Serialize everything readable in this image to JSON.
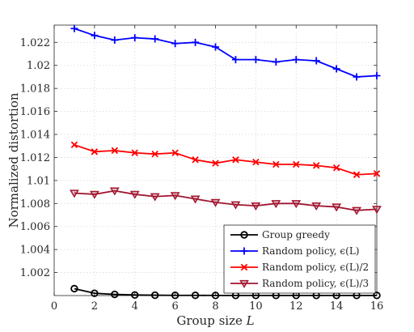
{
  "chart_data": {
    "type": "line",
    "xlabel": "Group size L",
    "xlabel_text": "Group size ",
    "xlabel_var": "L",
    "ylabel": "Normalized distortion",
    "xlim": [
      0,
      16
    ],
    "ylim": [
      1.0,
      1.0235
    ],
    "x_ticks": [
      0,
      2,
      4,
      6,
      8,
      10,
      12,
      14,
      16
    ],
    "y_ticks": [
      1.002,
      1.004,
      1.006,
      1.008,
      1.01,
      1.012,
      1.014,
      1.016,
      1.018,
      1.02,
      1.022
    ],
    "y_tick_labels": [
      "1.002",
      "1.004",
      "1.006",
      "1.008",
      "1.01",
      "1.012",
      "1.014",
      "1.016",
      "1.018",
      "1.02",
      "1.022"
    ],
    "grid": true,
    "legend_position": "bottom-right",
    "x": [
      1,
      2,
      3,
      4,
      5,
      6,
      7,
      8,
      9,
      10,
      11,
      12,
      13,
      14,
      15,
      16
    ],
    "series": [
      {
        "name": "Group greedy",
        "color": "#000000",
        "marker": "circle",
        "values": [
          1.0006,
          1.0002,
          1.0001,
          1.00005,
          1.00003,
          1.00002,
          1.00002,
          1.00001,
          1.00001,
          1.00001,
          1.00001,
          1.00001,
          1.00001,
          1.00001,
          1.00001,
          1.00001
        ]
      },
      {
        "name": "Random policy, ϵ(L)",
        "color": "#0000ff",
        "marker": "plus",
        "values": [
          1.0232,
          1.0226,
          1.0222,
          1.0224,
          1.0223,
          1.0219,
          1.022,
          1.0216,
          1.0205,
          1.0205,
          1.0203,
          1.0205,
          1.0204,
          1.0197,
          1.019,
          1.0191
        ]
      },
      {
        "name": "Random policy, ϵ(L)/2",
        "color": "#ff0000",
        "marker": "x",
        "values": [
          1.0131,
          1.0125,
          1.0126,
          1.0124,
          1.0123,
          1.0124,
          1.0118,
          1.0115,
          1.0118,
          1.0116,
          1.0114,
          1.0114,
          1.0113,
          1.0111,
          1.0105,
          1.0106
        ]
      },
      {
        "name": "Random policy, ϵ(L)/3",
        "color": "#a2142f",
        "marker": "triangle-down",
        "values": [
          1.0089,
          1.0088,
          1.0091,
          1.0088,
          1.0086,
          1.0087,
          1.0084,
          1.0081,
          1.0079,
          1.0078,
          1.008,
          1.008,
          1.0078,
          1.0077,
          1.0074,
          1.0075
        ]
      }
    ]
  }
}
